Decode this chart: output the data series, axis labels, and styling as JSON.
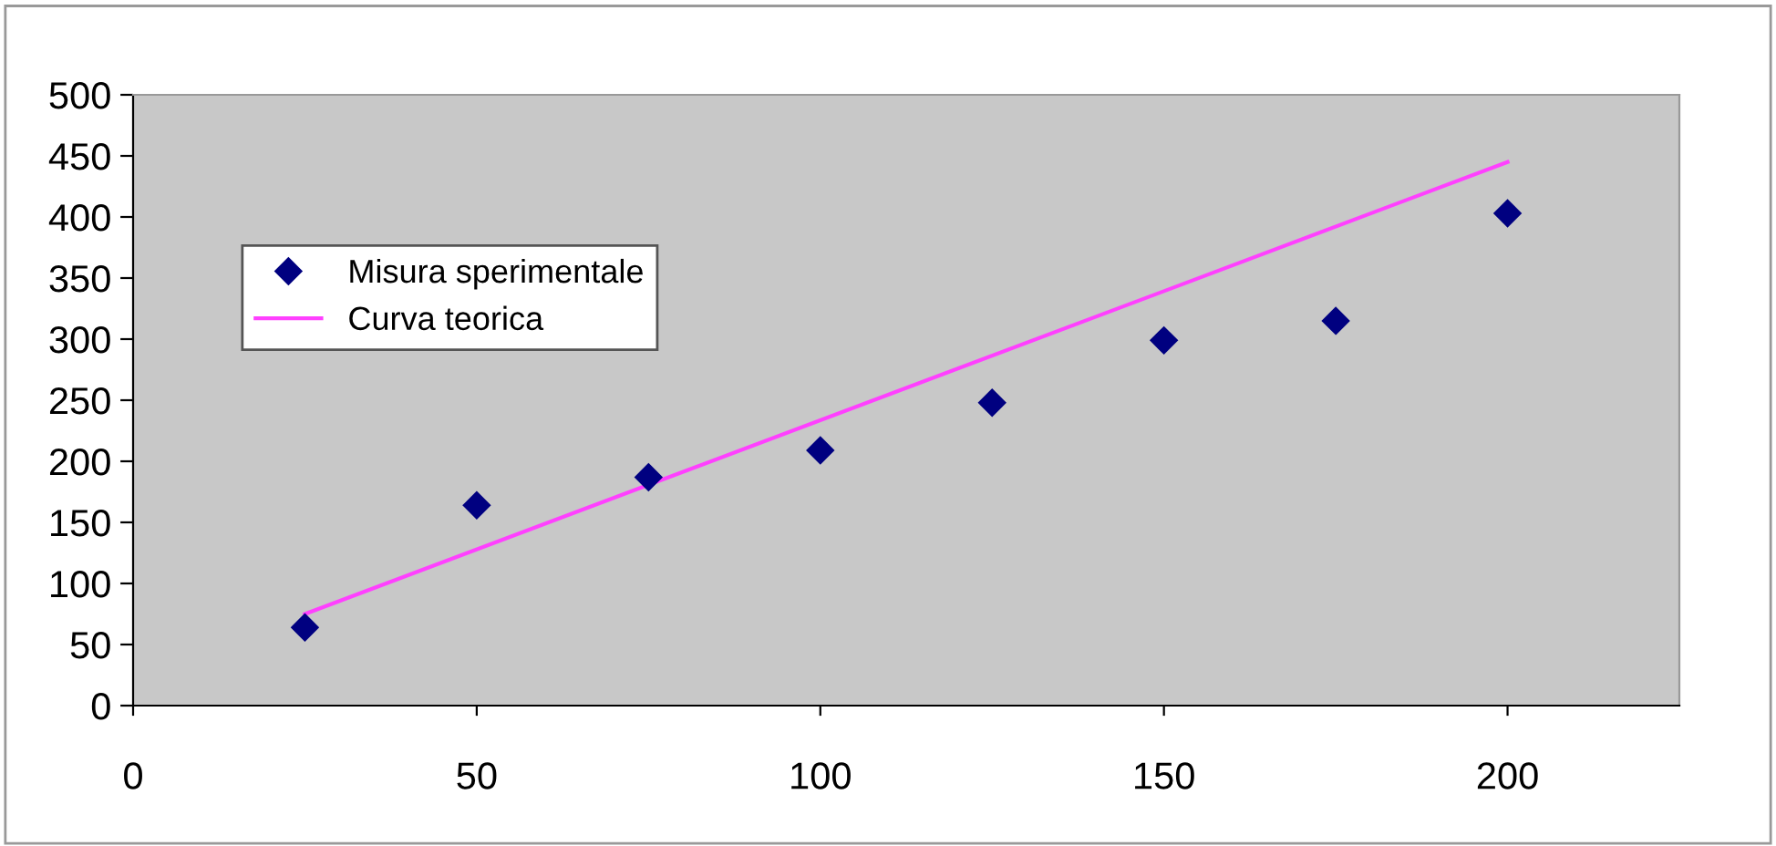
{
  "chart_data": {
    "type": "scatter",
    "series": [
      {
        "name": "Misura sperimentale",
        "type": "scatter",
        "x": [
          25,
          50,
          75,
          100,
          125,
          150,
          175,
          200
        ],
        "color": "#000080",
        "marker": "diamond",
        "values": [
          64,
          164,
          187,
          209,
          248,
          299,
          315,
          403
        ]
      },
      {
        "name": "Curva teorica",
        "type": "line",
        "color": "#ff40ff",
        "marker": "none",
        "x": [
          25,
          200
        ],
        "values": [
          75,
          445
        ]
      }
    ],
    "xlim": [
      0,
      225
    ],
    "xticks": [
      0,
      50,
      100,
      150,
      200
    ],
    "ylim": [
      0,
      500
    ],
    "yticks": [
      0,
      50,
      100,
      150,
      200,
      250,
      300,
      350,
      400,
      450,
      500
    ],
    "grid": false,
    "legend": "top left"
  }
}
